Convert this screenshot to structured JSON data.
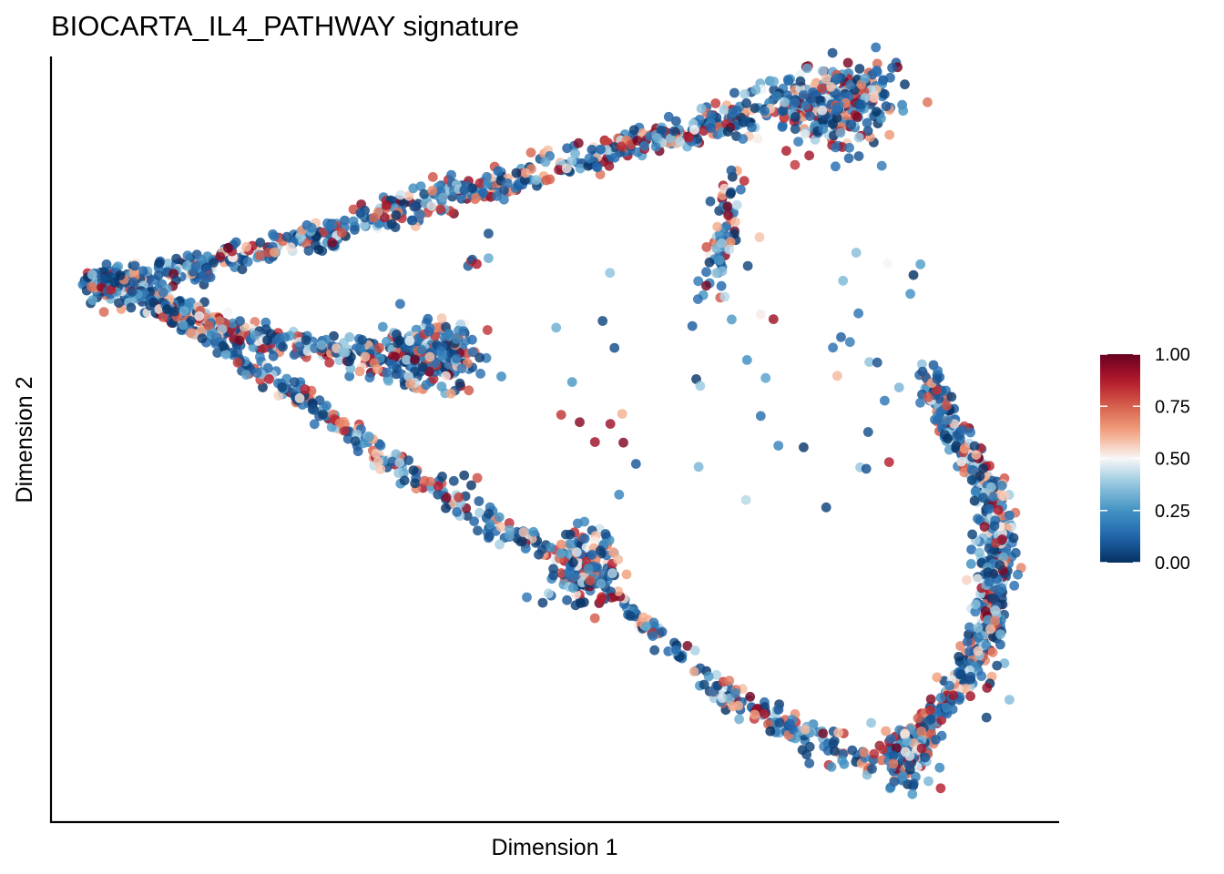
{
  "chart_data": {
    "type": "scatter",
    "title": "BIOCARTA_IL4_PATHWAY signature",
    "xlabel": "Dimension 1",
    "ylabel": "Dimension 2",
    "x_ticks_shown": false,
    "y_ticks_shown": false,
    "grid": false,
    "color_scale": {
      "name": "RdBu (reversed)",
      "domain": [
        0,
        1
      ],
      "stops": [
        {
          "value": 0.0,
          "color": "#053061"
        },
        {
          "value": 0.125,
          "color": "#2166ac"
        },
        {
          "value": 0.25,
          "color": "#4393c3"
        },
        {
          "value": 0.375,
          "color": "#92c5de"
        },
        {
          "value": 0.5,
          "color": "#f7f7f7"
        },
        {
          "value": 0.625,
          "color": "#f4a582"
        },
        {
          "value": 0.75,
          "color": "#d6604d"
        },
        {
          "value": 0.875,
          "color": "#b2182b"
        },
        {
          "value": 1.0,
          "color": "#67001f"
        }
      ],
      "legend_labels": [
        "1.00",
        "0.75",
        "0.50",
        "0.25",
        "0.00"
      ],
      "legend_position": "right"
    },
    "trajectory_backbone": [
      {
        "branch": "upper-arm",
        "points": [
          [
            1,
            25.1
          ],
          [
            12,
            26
          ],
          [
            27,
            28
          ],
          [
            43,
            30.3
          ],
          [
            56,
            32
          ],
          [
            68,
            33.6
          ],
          [
            80,
            35
          ],
          [
            86,
            35.6
          ]
        ]
      },
      {
        "branch": "lower-lobe",
        "points": [
          [
            1,
            25.1
          ],
          [
            9,
            23.9
          ],
          [
            17,
            22.4
          ],
          [
            25,
            21.7
          ],
          [
            33,
            21.4
          ],
          [
            40,
            21.2
          ]
        ]
      },
      {
        "branch": "diagonal",
        "points": [
          [
            7,
            24.2
          ],
          [
            19,
            20.5
          ],
          [
            31,
            16.4
          ],
          [
            43,
            12.6
          ],
          [
            53,
            10.4
          ],
          [
            61,
            6.6
          ],
          [
            69,
            3.4
          ],
          [
            77,
            1.6
          ],
          [
            83,
            0.2
          ],
          [
            88,
            0.6
          ]
        ]
      },
      {
        "branch": "right-loop",
        "points": [
          [
            88,
            0.6
          ],
          [
            91,
            2.4
          ],
          [
            95,
            5.6
          ],
          [
            97,
            8.4
          ],
          [
            98,
            10.8
          ],
          [
            98,
            12.6
          ],
          [
            97,
            13.8
          ],
          [
            93,
            17.2
          ],
          [
            90,
            20.3
          ]
        ]
      },
      {
        "branch": "upper-drop",
        "points": [
          [
            69,
            30.9
          ],
          [
            67.5,
            26.8
          ],
          [
            66,
            24.2
          ]
        ]
      }
    ],
    "point_count_estimate": 3000
  }
}
